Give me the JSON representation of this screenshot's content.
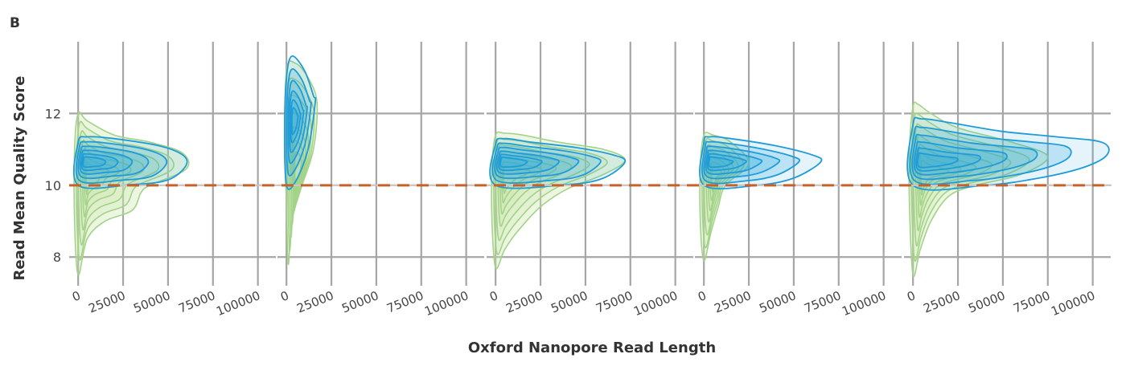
{
  "chart_data": {
    "type": "density-contour",
    "panel_label": "B",
    "ylabel": "Read Mean Quality Score",
    "xlabel": "Oxford Nanopore Read Length",
    "x_ticks": [
      "0",
      "25000",
      "50000",
      "75000",
      "100000"
    ],
    "y_ticks": [
      "8",
      "10",
      "12"
    ],
    "xlim": [
      -5000,
      110000
    ],
    "ylim": [
      7.2,
      14.0
    ],
    "threshold_y": 10,
    "colors": {
      "fail_fill": "#c8e4a8",
      "fail_line": "#a3d389",
      "pass_fill": "#2aa8e0",
      "pass_line": "#1f9cd8",
      "threshold": "#c8602a",
      "grid": "#a6a6a6"
    },
    "panels": [
      {
        "pass_outer": [
          [
            0,
            10
          ],
          [
            30000,
            10.02
          ],
          [
            50000,
            10.15
          ],
          [
            60000,
            10.55
          ],
          [
            58000,
            10.85
          ],
          [
            45000,
            11.1
          ],
          [
            20000,
            11.3
          ],
          [
            5000,
            11.35
          ],
          [
            0,
            11.2
          ]
        ],
        "fail_outer": [
          [
            0,
            12.0
          ],
          [
            -2000,
            11.0
          ],
          [
            -2000,
            9.0
          ],
          [
            0,
            7.5
          ],
          [
            5000,
            8.5
          ],
          [
            15000,
            9.0
          ],
          [
            30000,
            9.3
          ],
          [
            35000,
            9.8
          ],
          [
            40000,
            10.0
          ],
          [
            60000,
            10.45
          ],
          [
            58000,
            10.9
          ],
          [
            40000,
            11.2
          ],
          [
            20000,
            11.4
          ],
          [
            5000,
            11.8
          ]
        ]
      },
      {
        "pass_outer": [
          [
            0,
            10
          ],
          [
            5000,
            10.1
          ],
          [
            12000,
            11.0
          ],
          [
            16000,
            12.3
          ],
          [
            15000,
            12.5
          ],
          [
            10000,
            13.2
          ],
          [
            3000,
            13.6
          ],
          [
            0,
            13.0
          ],
          [
            -1000,
            11.5
          ]
        ],
        "fail_outer": [
          [
            0,
            13.2
          ],
          [
            -1000,
            11.0
          ],
          [
            0,
            9.5
          ],
          [
            1000,
            7.8
          ],
          [
            3000,
            9.0
          ],
          [
            8000,
            9.9
          ],
          [
            15000,
            11.0
          ],
          [
            17000,
            12.3
          ],
          [
            12000,
            13.0
          ],
          [
            5000,
            13.4
          ]
        ]
      },
      {
        "pass_outer": [
          [
            0,
            10
          ],
          [
            40000,
            10.02
          ],
          [
            60000,
            10.2
          ],
          [
            72000,
            10.65
          ],
          [
            65000,
            10.85
          ],
          [
            45000,
            11.05
          ],
          [
            20000,
            11.2
          ],
          [
            5000,
            11.3
          ],
          [
            0,
            11.15
          ]
        ],
        "fail_outer": [
          [
            0,
            11.4
          ],
          [
            -2000,
            10.5
          ],
          [
            -2000,
            9.0
          ],
          [
            0,
            7.7
          ],
          [
            5000,
            8.2
          ],
          [
            12000,
            8.7
          ],
          [
            25000,
            9.4
          ],
          [
            40000,
            9.9
          ],
          [
            60000,
            10.3
          ],
          [
            72000,
            10.7
          ],
          [
            60000,
            11.0
          ],
          [
            35000,
            11.2
          ],
          [
            15000,
            11.4
          ],
          [
            5000,
            11.45
          ]
        ]
      },
      {
        "pass_outer": [
          [
            0,
            10
          ],
          [
            30000,
            10.0
          ],
          [
            50000,
            10.2
          ],
          [
            65000,
            10.65
          ],
          [
            60000,
            10.85
          ],
          [
            40000,
            11.1
          ],
          [
            15000,
            11.3
          ],
          [
            3000,
            11.35
          ],
          [
            0,
            11.2
          ]
        ],
        "fail_outer": [
          [
            0,
            11.4
          ],
          [
            -2000,
            10.5
          ],
          [
            -2000,
            9.0
          ],
          [
            0,
            7.9
          ],
          [
            4000,
            8.7
          ],
          [
            8000,
            9.4
          ],
          [
            12000,
            10.0
          ],
          [
            25000,
            10.6
          ],
          [
            15000,
            11.2
          ],
          [
            5000,
            11.4
          ]
        ]
      },
      {
        "pass_outer": [
          [
            0,
            10
          ],
          [
            40000,
            10.0
          ],
          [
            70000,
            10.2
          ],
          [
            95000,
            10.5
          ],
          [
            108000,
            10.85
          ],
          [
            105000,
            11.2
          ],
          [
            80000,
            11.35
          ],
          [
            50000,
            11.5
          ],
          [
            20000,
            11.75
          ],
          [
            5000,
            11.85
          ],
          [
            0,
            11.7
          ]
        ],
        "fail_outer": [
          [
            0,
            12.2
          ],
          [
            -2000,
            11.0
          ],
          [
            -2000,
            9.5
          ],
          [
            0,
            7.5
          ],
          [
            4000,
            8.2
          ],
          [
            10000,
            9.0
          ],
          [
            20000,
            9.7
          ],
          [
            35000,
            10.0
          ],
          [
            60000,
            10.3
          ],
          [
            75000,
            10.8
          ],
          [
            55000,
            11.2
          ],
          [
            25000,
            11.6
          ],
          [
            10000,
            12.0
          ],
          [
            3000,
            12.25
          ]
        ]
      }
    ]
  }
}
